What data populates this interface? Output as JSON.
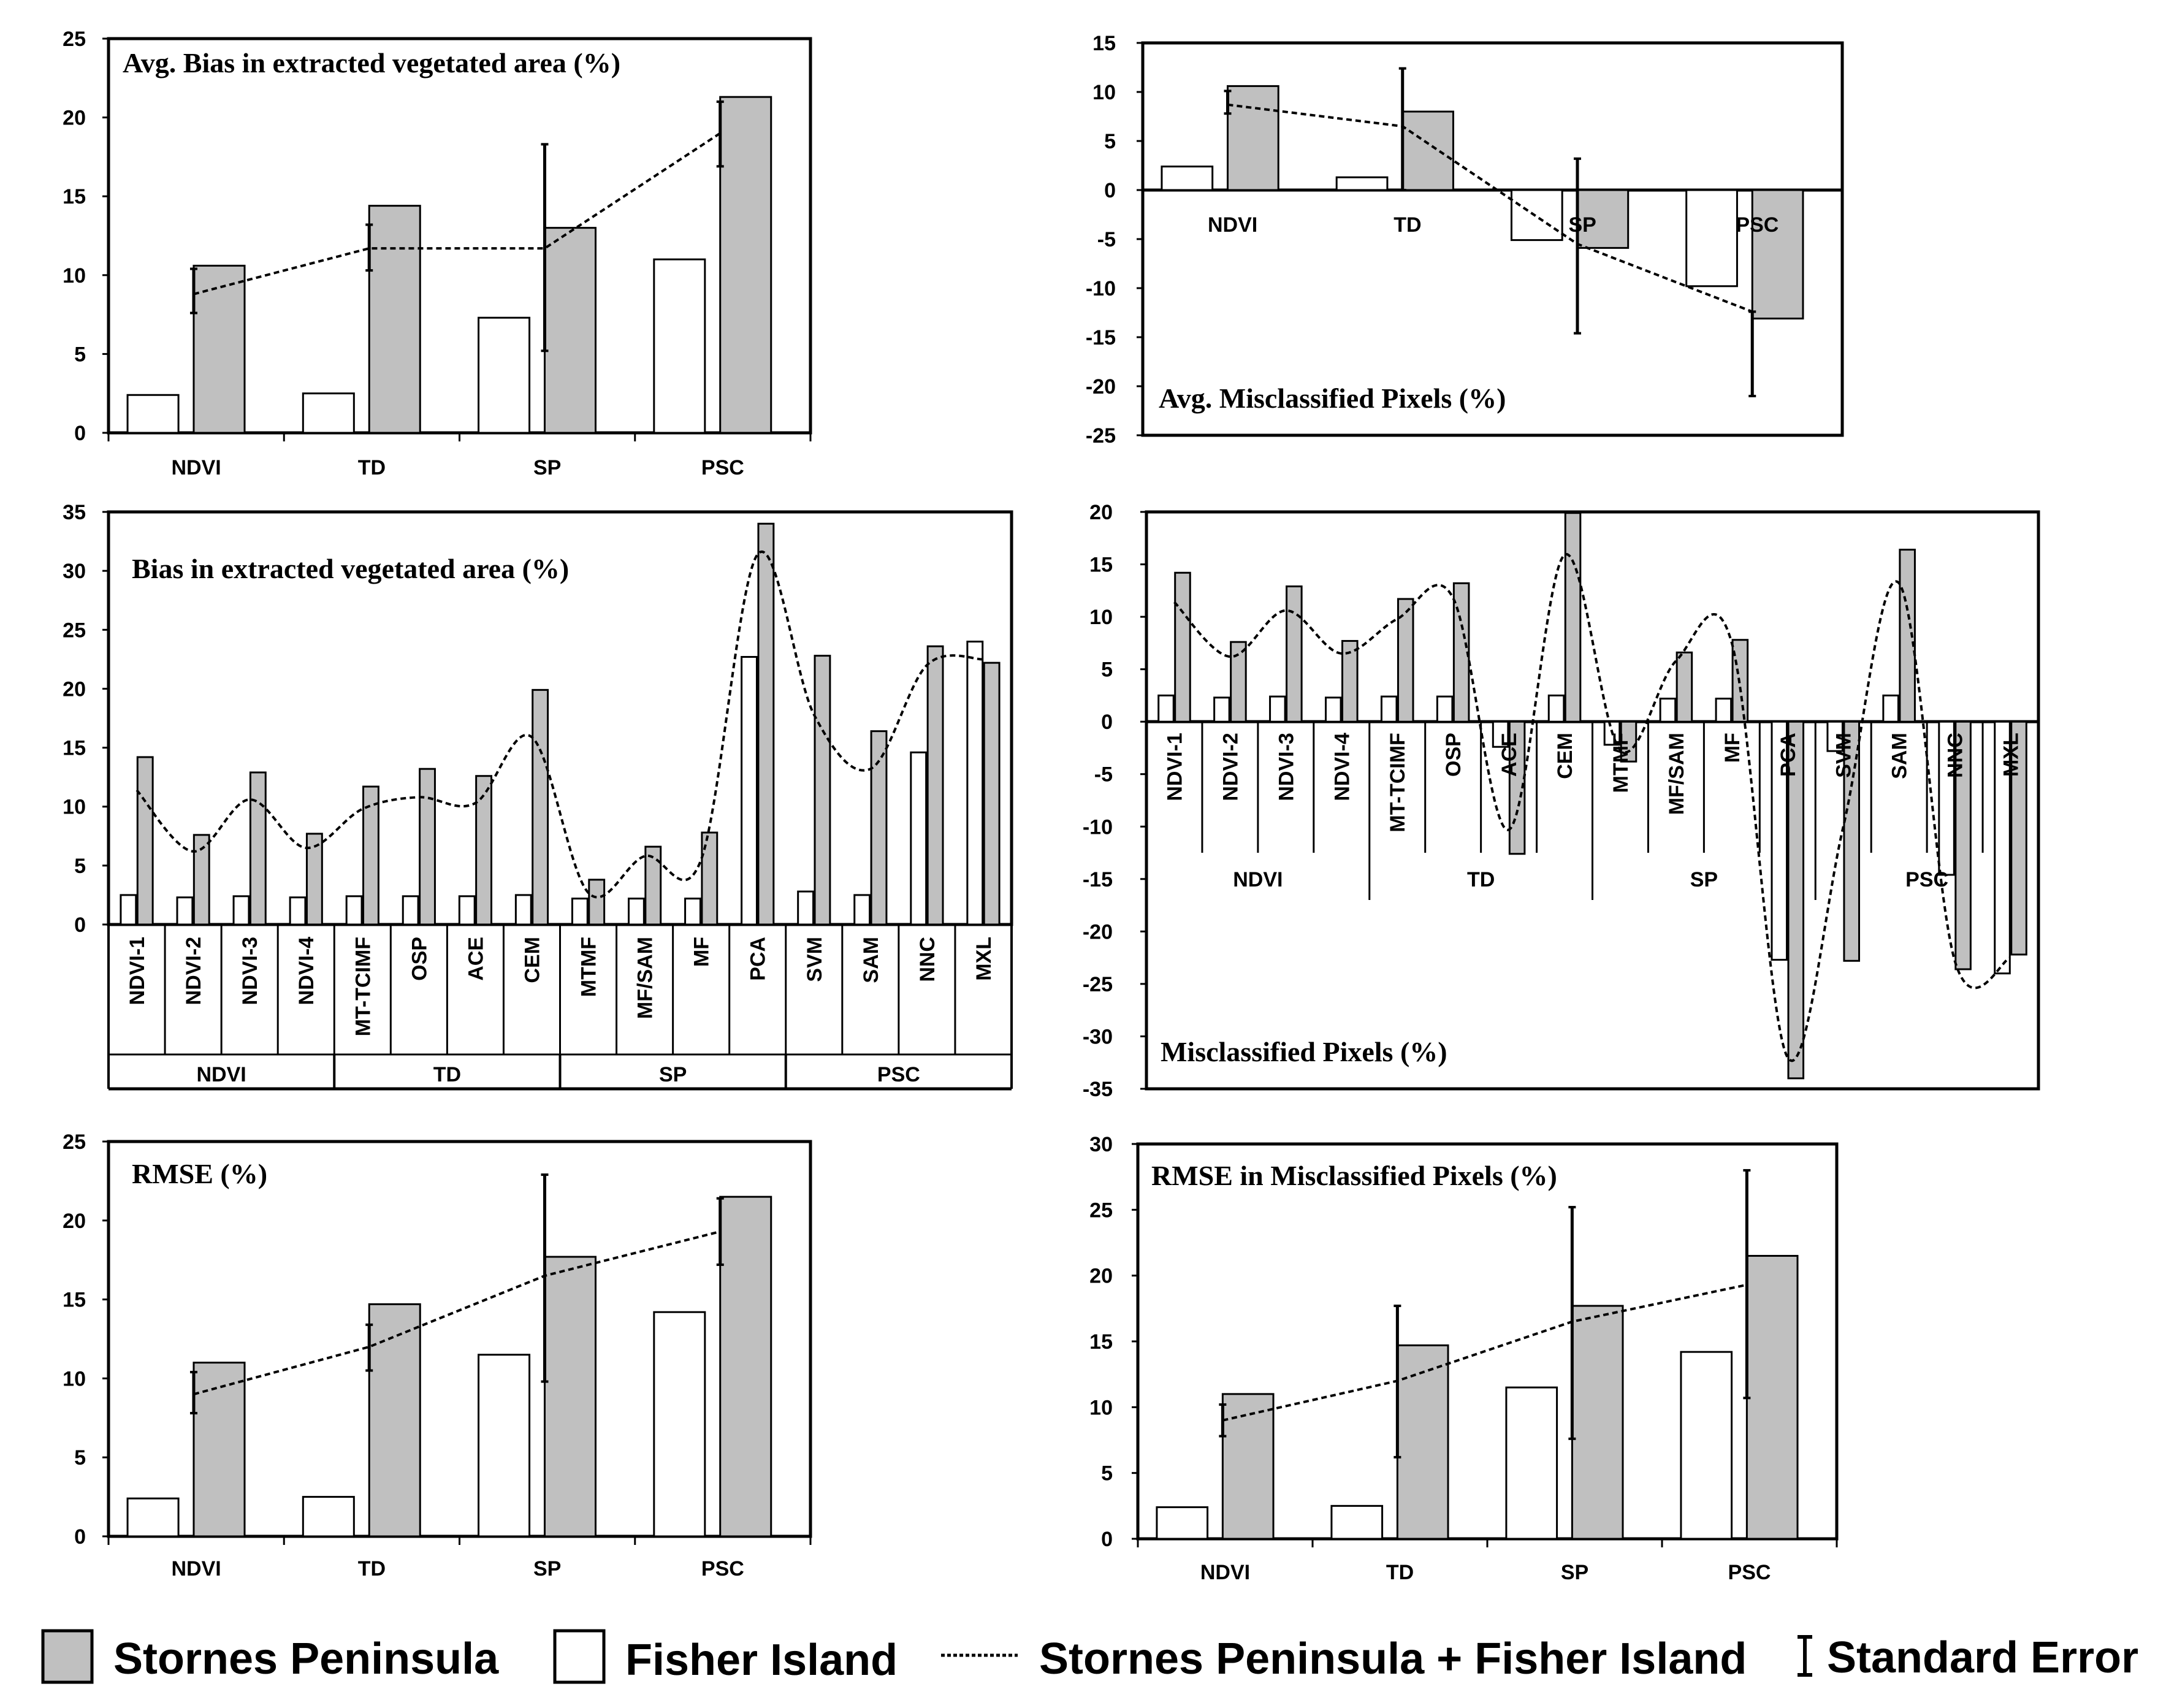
{
  "chart_data": [
    {
      "id": "p1",
      "type": "bar",
      "title": "Avg. Bias in extracted vegetated area (%)",
      "categories": [
        "NDVI",
        "TD",
        "SP",
        "PSC"
      ],
      "ylim": [
        0,
        25
      ],
      "yticks": [
        0,
        5,
        10,
        15,
        20,
        25
      ],
      "series": [
        {
          "name": "Fisher Island",
          "values": [
            2.4,
            2.5,
            7.3,
            11.0
          ]
        },
        {
          "name": "Stornes Peninsula",
          "values": [
            10.6,
            14.4,
            13.0,
            21.3
          ]
        },
        {
          "name": "Stornes Peninsula + Fisher Island",
          "values": [
            8.8,
            11.7,
            11.7,
            19.0
          ]
        }
      ],
      "error_bars": [
        [
          7.6,
          10.4
        ],
        [
          10.3,
          13.2
        ],
        [
          5.2,
          18.3
        ],
        [
          16.9,
          21.0
        ]
      ]
    },
    {
      "id": "p2",
      "type": "bar",
      "title": "Avg. Misclassified Pixels (%)",
      "categories": [
        "NDVI",
        "TD",
        "SP",
        "PSC"
      ],
      "ylim": [
        -25,
        15
      ],
      "yticks": [
        -25,
        -20,
        -15,
        -10,
        -5,
        0,
        5,
        10,
        15
      ],
      "series": [
        {
          "name": "Fisher Island",
          "values": [
            2.4,
            1.3,
            -5.1,
            -9.8
          ]
        },
        {
          "name": "Stornes Peninsula",
          "values": [
            10.6,
            8.0,
            -5.9,
            -13.1
          ]
        },
        {
          "name": "Stornes Peninsula + Fisher Island",
          "values": [
            8.7,
            6.5,
            -5.5,
            -12.4
          ]
        }
      ],
      "error_bars": [
        [
          7.8,
          10.1
        ],
        [
          0.0,
          12.4
        ],
        [
          -14.6,
          3.2
        ],
        [
          -21.0,
          -12.4
        ]
      ]
    },
    {
      "id": "p3",
      "type": "bar",
      "title": "Bias in extracted vegetated area (%)",
      "categories": [
        "NDVI-1",
        "NDVI-2",
        "NDVI-3",
        "NDVI-4",
        "MT-TCIMF",
        "OSP",
        "ACE",
        "CEM",
        "MTMF",
        "MF/SAM",
        "MF",
        "PCA",
        "SVM",
        "SAM",
        "NNC",
        "MXL"
      ],
      "groups": [
        "NDVI",
        "TD",
        "SP",
        "PSC"
      ],
      "ylim": [
        0,
        35
      ],
      "yticks": [
        0,
        5,
        10,
        15,
        20,
        25,
        30,
        35
      ],
      "series": [
        {
          "name": "Fisher Island",
          "values": [
            2.5,
            2.3,
            2.4,
            2.3,
            2.4,
            2.4,
            2.4,
            2.5,
            2.2,
            2.2,
            2.2,
            22.7,
            2.8,
            2.5,
            14.6,
            24.0
          ]
        },
        {
          "name": "Stornes Peninsula",
          "values": [
            14.2,
            7.6,
            12.9,
            7.7,
            11.7,
            13.2,
            12.6,
            19.9,
            3.8,
            6.6,
            7.8,
            34.0,
            22.8,
            16.4,
            23.6,
            22.2
          ]
        },
        {
          "name": "Stornes Peninsula + Fisher Island",
          "values": [
            11.4,
            6.2,
            10.6,
            6.5,
            9.8,
            10.8,
            10.3,
            15.9,
            2.7,
            5.8,
            5.5,
            31.4,
            17.8,
            13.2,
            22.0,
            22.5
          ]
        }
      ]
    },
    {
      "id": "p4",
      "type": "bar",
      "title": "Misclassified Pixels (%)",
      "categories": [
        "NDVI-1",
        "NDVI-2",
        "NDVI-3",
        "NDVI-4",
        "MT-TCIMF",
        "OSP",
        "ACE",
        "CEM",
        "MTMF",
        "MF/SAM",
        "MF",
        "PCA",
        "SVM",
        "SAM",
        "NNC",
        "MXL"
      ],
      "groups": [
        "NDVI",
        "TD",
        "SP",
        "PSC"
      ],
      "ylim": [
        -35,
        20
      ],
      "yticks": [
        -35,
        -30,
        -25,
        -20,
        -15,
        -10,
        -5,
        0,
        5,
        10,
        15,
        20
      ],
      "series": [
        {
          "name": "Fisher Island",
          "values": [
            2.5,
            2.3,
            2.4,
            2.3,
            2.4,
            2.4,
            -2.4,
            2.5,
            -2.2,
            2.2,
            2.2,
            -22.7,
            -2.8,
            2.5,
            -14.6,
            -24.0
          ]
        },
        {
          "name": "Stornes Peninsula",
          "values": [
            14.2,
            7.6,
            12.9,
            7.7,
            11.7,
            13.2,
            -12.6,
            19.9,
            -3.8,
            6.6,
            7.8,
            -34.0,
            -22.8,
            16.4,
            -23.6,
            -22.2
          ]
        },
        {
          "name": "Stornes Peninsula + Fisher Island",
          "values": [
            11.4,
            6.2,
            10.6,
            6.5,
            9.8,
            11.8,
            -10.3,
            15.9,
            -2.7,
            5.8,
            7.5,
            -32.0,
            -10.0,
            13.2,
            -22.8,
            -22.5
          ]
        }
      ]
    },
    {
      "id": "p5",
      "type": "bar",
      "title": "RMSE (%)",
      "categories": [
        "NDVI",
        "TD",
        "SP",
        "PSC"
      ],
      "ylim": [
        0,
        25
      ],
      "yticks": [
        0,
        5,
        10,
        15,
        20,
        25
      ],
      "series": [
        {
          "name": "Fisher Island",
          "values": [
            2.4,
            2.5,
            11.5,
            14.2
          ]
        },
        {
          "name": "Stornes Peninsula",
          "values": [
            11.0,
            14.7,
            17.7,
            21.5
          ]
        },
        {
          "name": "Stornes Peninsula + Fisher Island",
          "values": [
            9.0,
            12.0,
            16.5,
            19.3
          ]
        }
      ],
      "error_bars": [
        [
          7.8,
          10.4
        ],
        [
          10.5,
          13.4
        ],
        [
          9.8,
          22.9
        ],
        [
          17.2,
          21.4
        ]
      ]
    },
    {
      "id": "p6",
      "type": "bar",
      "title": "RMSE in Misclassified Pixels (%)",
      "categories": [
        "NDVI",
        "TD",
        "SP",
        "PSC"
      ],
      "ylim": [
        0,
        30
      ],
      "yticks": [
        0,
        5,
        10,
        15,
        20,
        25,
        30
      ],
      "series": [
        {
          "name": "Fisher Island",
          "values": [
            2.4,
            2.5,
            11.5,
            14.2
          ]
        },
        {
          "name": "Stornes Peninsula",
          "values": [
            11.0,
            14.7,
            17.7,
            21.5
          ]
        },
        {
          "name": "Stornes Peninsula + Fisher Island",
          "values": [
            9.0,
            12.0,
            16.5,
            19.3
          ]
        }
      ],
      "error_bars": [
        [
          7.8,
          10.2
        ],
        [
          6.2,
          17.7
        ],
        [
          7.6,
          25.2
        ],
        [
          10.7,
          28.0
        ]
      ]
    }
  ],
  "legend": {
    "stornes": "Stornes Peninsula",
    "fisher": "Fisher Island",
    "combined": "Stornes Peninsula + Fisher Island",
    "stderr": "Standard Error"
  },
  "colors": {
    "stornes": "#c0c0c0",
    "fisher": "#ffffff",
    "stroke": "#000000"
  }
}
